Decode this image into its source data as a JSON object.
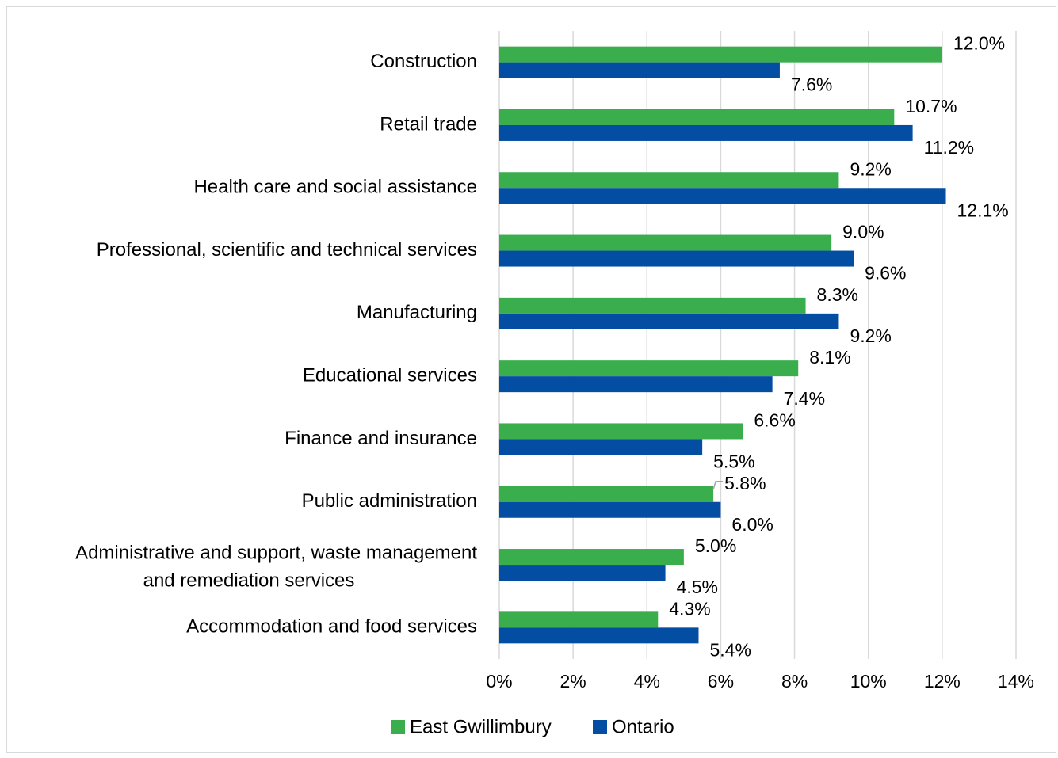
{
  "chart_data": {
    "type": "bar",
    "orientation": "horizontal",
    "categories": [
      "Construction",
      "Retail trade",
      "Health care and social assistance",
      "Professional, scientific and technical services",
      "Manufacturing",
      "Educational services",
      "Finance and insurance",
      "Public administration",
      "Administrative and support, waste management and remediation services",
      "Accommodation and food services"
    ],
    "category_lines": [
      [
        "Construction"
      ],
      [
        "Retail trade"
      ],
      [
        "Health care and social assistance"
      ],
      [
        "Professional, scientific and technical services"
      ],
      [
        "Manufacturing"
      ],
      [
        "Educational services"
      ],
      [
        "Finance and insurance"
      ],
      [
        "Public administration"
      ],
      [
        "Administrative and support, waste management",
        "and remediation services"
      ],
      [
        "Accommodation and food services"
      ]
    ],
    "series": [
      {
        "name": "East Gwillimbury",
        "color": "#3aae4c",
        "values": [
          12.0,
          10.7,
          9.2,
          9.0,
          8.3,
          8.1,
          6.6,
          5.8,
          5.0,
          4.3
        ],
        "labels": [
          "12.0%",
          "10.7%",
          "9.2%",
          "9.0%",
          "8.3%",
          "8.1%",
          "6.6%",
          "5.8%",
          "5.0%",
          "4.3%"
        ]
      },
      {
        "name": "Ontario",
        "color": "#034ea2",
        "values": [
          7.6,
          11.2,
          12.1,
          9.6,
          9.2,
          7.4,
          5.5,
          6.0,
          4.5,
          5.4
        ],
        "labels": [
          "7.6%",
          "11.2%",
          "12.1%",
          "9.6%",
          "9.2%",
          "7.4%",
          "5.5%",
          "6.0%",
          "4.5%",
          "5.4%"
        ]
      }
    ],
    "xlim": [
      0,
      14
    ],
    "xticks": [
      "0%",
      "2%",
      "4%",
      "6%",
      "8%",
      "10%",
      "12%",
      "14%"
    ],
    "grid": "vertical",
    "legend_position": "bottom",
    "title": "",
    "xlabel": "",
    "ylabel": ""
  }
}
